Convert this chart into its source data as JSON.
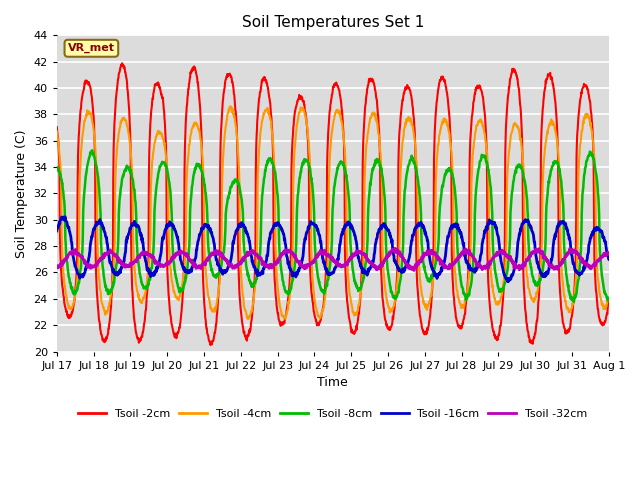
{
  "title": "Soil Temperatures Set 1",
  "xlabel": "Time",
  "ylabel": "Soil Temperature (C)",
  "ylim": [
    20,
    44
  ],
  "plot_bg_color": "#dcdcdc",
  "grid_color": "#ffffff",
  "series_names": [
    "Tsoil -2cm",
    "Tsoil -4cm",
    "Tsoil -8cm",
    "Tsoil -16cm",
    "Tsoil -32cm"
  ],
  "series_colors": [
    "#ff0000",
    "#ff9900",
    "#00bb00",
    "#0000cc",
    "#bb00bb"
  ],
  "series_amp": [
    9.5,
    7.0,
    4.8,
    2.0,
    0.6
  ],
  "series_mean": [
    31.0,
    30.5,
    29.5,
    27.8,
    27.0
  ],
  "series_phase_days": [
    0.0,
    0.05,
    0.15,
    0.35,
    0.65
  ],
  "series_lw": [
    1.5,
    1.5,
    1.8,
    2.0,
    2.0
  ],
  "peak_sharpness": 3.0,
  "xtick_labels": [
    "Jul 17",
    "Jul 18",
    "Jul 19",
    "Jul 20",
    "Jul 21",
    "Jul 22",
    "Jul 23",
    "Jul 24",
    "Jul 25",
    "Jul 26",
    "Jul 27",
    "Jul 28",
    "Jul 29",
    "Jul 30",
    "Jul 31",
    "Aug 1"
  ],
  "annotation": "VR_met",
  "annotation_color": "#8b0000",
  "annotation_bg": "#ffffaa",
  "annotation_edge": "#8b6914"
}
